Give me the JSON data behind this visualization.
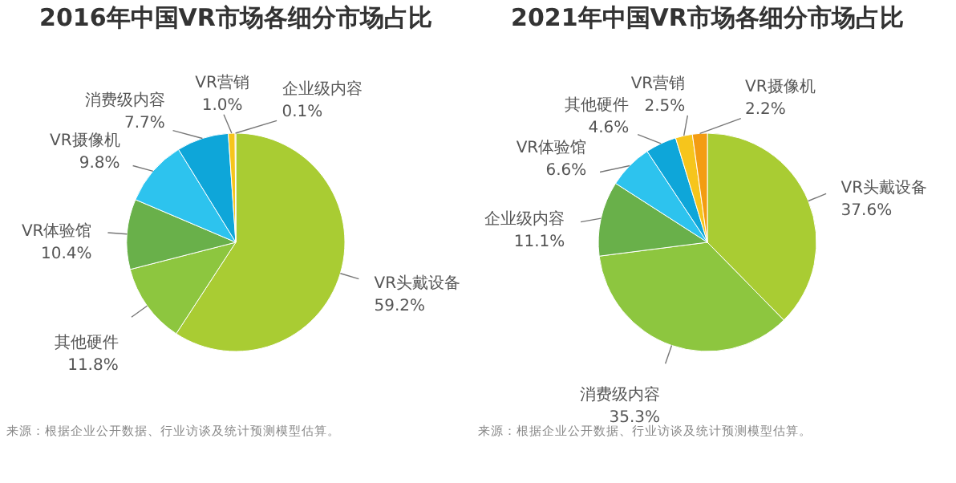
{
  "chart_data": [
    {
      "type": "pie",
      "title": "2016年中国VR市场各细分市场占比",
      "categories": [
        "VR头戴设备",
        "其他硬件",
        "VR体验馆",
        "VR摄像机",
        "消费级内容",
        "VR营销",
        "企业级内容"
      ],
      "values": [
        59.2,
        11.8,
        10.4,
        9.8,
        7.7,
        1.0,
        0.1
      ],
      "value_labels": [
        "59.2%",
        "11.8%",
        "10.4%",
        "9.8%",
        "7.7%",
        "1.0%",
        "0.1%"
      ],
      "colors": [
        "#a9cc33",
        "#8dc63f",
        "#69b04a",
        "#2dc3ee",
        "#0ea6d9",
        "#f6c51c",
        "#f39c12"
      ],
      "annotations": [
        "来源：根据企业公开数据、行业访谈及统计预测模型估算。"
      ]
    },
    {
      "type": "pie",
      "title": "2021年中国VR市场各细分市场占比",
      "categories": [
        "VR头戴设备",
        "消费级内容",
        "企业级内容",
        "VR体验馆",
        "其他硬件",
        "VR营销",
        "VR摄像机"
      ],
      "values": [
        37.6,
        35.3,
        11.1,
        6.6,
        4.6,
        2.5,
        2.2
      ],
      "value_labels": [
        "37.6%",
        "35.3%",
        "11.1%",
        "6.6%",
        "4.6%",
        "2.5%",
        "2.2%"
      ],
      "colors": [
        "#a9cc33",
        "#8dc63f",
        "#69b04a",
        "#2dc3ee",
        "#0ea6d9",
        "#f6c51c",
        "#f39c12"
      ],
      "annotations": [
        "来源：根据企业公开数据、行业访谈及统计预测模型估算。"
      ]
    }
  ]
}
